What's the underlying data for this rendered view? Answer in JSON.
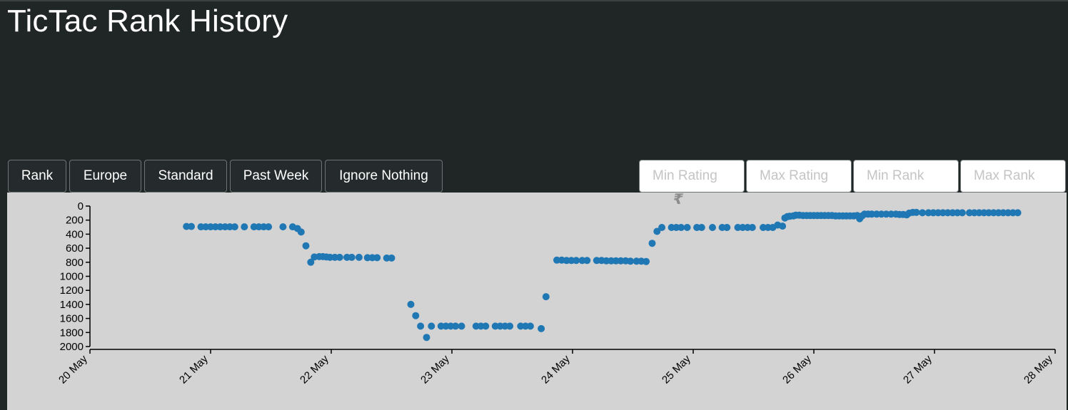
{
  "title": "TicTac Rank History",
  "buttons": {
    "rank": "Rank",
    "region": "Europe",
    "mode": "Standard",
    "period": "Past Week",
    "ignore": "Ignore Nothing"
  },
  "filters": {
    "min_rating": "Min Rating",
    "max_rating": "Max Rating",
    "min_rank": "Min Rank",
    "max_rank": "Max Rank"
  },
  "colors": {
    "background": "#202526",
    "plot_bg": "#d3d3d3",
    "point": "#1f77b4"
  },
  "chart_data": {
    "type": "scatter",
    "title": "",
    "xlabel": "",
    "ylabel": "",
    "y_inverted": true,
    "ylim": [
      0,
      2000
    ],
    "y_ticks": [
      0,
      200,
      400,
      600,
      800,
      1000,
      1200,
      1400,
      1600,
      1800,
      2000
    ],
    "x_ticks": [
      "20 May",
      "21 May",
      "22 May",
      "23 May",
      "24 May",
      "25 May",
      "26 May",
      "27 May",
      "28 May"
    ],
    "x_unit": "days since 20 May",
    "xlim": [
      0,
      8
    ],
    "grid": false,
    "points": [
      [
        0.8,
        290
      ],
      [
        0.84,
        290
      ],
      [
        0.92,
        295
      ],
      [
        0.96,
        295
      ],
      [
        1.0,
        295
      ],
      [
        1.04,
        295
      ],
      [
        1.08,
        295
      ],
      [
        1.12,
        295
      ],
      [
        1.16,
        295
      ],
      [
        1.2,
        295
      ],
      [
        1.28,
        295
      ],
      [
        1.36,
        295
      ],
      [
        1.4,
        295
      ],
      [
        1.44,
        295
      ],
      [
        1.48,
        295
      ],
      [
        1.6,
        295
      ],
      [
        1.68,
        295
      ],
      [
        1.72,
        320
      ],
      [
        1.75,
        370
      ],
      [
        1.79,
        565
      ],
      [
        1.83,
        800
      ],
      [
        1.86,
        725
      ],
      [
        1.9,
        720
      ],
      [
        1.93,
        720
      ],
      [
        1.96,
        725
      ],
      [
        1.99,
        730
      ],
      [
        2.03,
        730
      ],
      [
        2.07,
        730
      ],
      [
        2.13,
        730
      ],
      [
        2.17,
        730
      ],
      [
        2.23,
        730
      ],
      [
        2.3,
        735
      ],
      [
        2.34,
        735
      ],
      [
        2.38,
        735
      ],
      [
        2.46,
        740
      ],
      [
        2.5,
        740
      ],
      [
        2.66,
        1400
      ],
      [
        2.7,
        1560
      ],
      [
        2.74,
        1710
      ],
      [
        2.79,
        1870
      ],
      [
        2.83,
        1710
      ],
      [
        2.91,
        1710
      ],
      [
        2.95,
        1710
      ],
      [
        2.99,
        1710
      ],
      [
        3.03,
        1710
      ],
      [
        3.08,
        1710
      ],
      [
        3.2,
        1710
      ],
      [
        3.24,
        1710
      ],
      [
        3.28,
        1710
      ],
      [
        3.36,
        1710
      ],
      [
        3.4,
        1710
      ],
      [
        3.44,
        1710
      ],
      [
        3.48,
        1710
      ],
      [
        3.57,
        1710
      ],
      [
        3.61,
        1710
      ],
      [
        3.65,
        1710
      ],
      [
        3.74,
        1745
      ],
      [
        3.78,
        1290
      ],
      [
        3.87,
        770
      ],
      [
        3.91,
        770
      ],
      [
        3.95,
        775
      ],
      [
        3.99,
        775
      ],
      [
        4.03,
        775
      ],
      [
        4.08,
        775
      ],
      [
        4.12,
        775
      ],
      [
        4.2,
        775
      ],
      [
        4.24,
        775
      ],
      [
        4.28,
        780
      ],
      [
        4.32,
        780
      ],
      [
        4.36,
        780
      ],
      [
        4.4,
        780
      ],
      [
        4.44,
        780
      ],
      [
        4.48,
        785
      ],
      [
        4.53,
        785
      ],
      [
        4.57,
        785
      ],
      [
        4.61,
        790
      ],
      [
        4.66,
        530
      ],
      [
        4.7,
        360
      ],
      [
        4.74,
        305
      ],
      [
        4.82,
        305
      ],
      [
        4.86,
        305
      ],
      [
        4.9,
        305
      ],
      [
        4.95,
        305
      ],
      [
        5.03,
        305
      ],
      [
        5.07,
        305
      ],
      [
        5.16,
        305
      ],
      [
        5.24,
        305
      ],
      [
        5.28,
        305
      ],
      [
        5.37,
        305
      ],
      [
        5.41,
        305
      ],
      [
        5.45,
        305
      ],
      [
        5.49,
        305
      ],
      [
        5.58,
        305
      ],
      [
        5.62,
        305
      ],
      [
        5.66,
        305
      ],
      [
        5.7,
        270
      ],
      [
        5.74,
        285
      ],
      [
        5.76,
        170
      ],
      [
        5.78,
        150
      ],
      [
        5.8,
        145
      ],
      [
        5.83,
        140
      ],
      [
        5.85,
        130
      ],
      [
        5.88,
        130
      ],
      [
        5.91,
        135
      ],
      [
        5.94,
        135
      ],
      [
        5.97,
        135
      ],
      [
        6.0,
        135
      ],
      [
        6.03,
        135
      ],
      [
        6.06,
        135
      ],
      [
        6.09,
        135
      ],
      [
        6.12,
        135
      ],
      [
        6.15,
        135
      ],
      [
        6.18,
        140
      ],
      [
        6.21,
        140
      ],
      [
        6.24,
        140
      ],
      [
        6.27,
        140
      ],
      [
        6.3,
        140
      ],
      [
        6.33,
        140
      ],
      [
        6.36,
        135
      ],
      [
        6.38,
        180
      ],
      [
        6.4,
        140
      ],
      [
        6.42,
        115
      ],
      [
        6.45,
        115
      ],
      [
        6.48,
        115
      ],
      [
        6.52,
        115
      ],
      [
        6.56,
        115
      ],
      [
        6.6,
        115
      ],
      [
        6.64,
        115
      ],
      [
        6.68,
        115
      ],
      [
        6.71,
        120
      ],
      [
        6.74,
        120
      ],
      [
        6.77,
        125
      ],
      [
        6.79,
        100
      ],
      [
        6.82,
        90
      ],
      [
        6.85,
        90
      ],
      [
        6.9,
        95
      ],
      [
        6.95,
        95
      ],
      [
        6.99,
        95
      ],
      [
        7.03,
        95
      ],
      [
        7.07,
        95
      ],
      [
        7.11,
        95
      ],
      [
        7.15,
        95
      ],
      [
        7.19,
        95
      ],
      [
        7.23,
        95
      ],
      [
        7.29,
        95
      ],
      [
        7.33,
        95
      ],
      [
        7.37,
        95
      ],
      [
        7.41,
        95
      ],
      [
        7.45,
        95
      ],
      [
        7.49,
        95
      ],
      [
        7.53,
        95
      ],
      [
        7.57,
        95
      ],
      [
        7.61,
        95
      ],
      [
        7.65,
        95
      ],
      [
        7.69,
        95
      ]
    ]
  }
}
